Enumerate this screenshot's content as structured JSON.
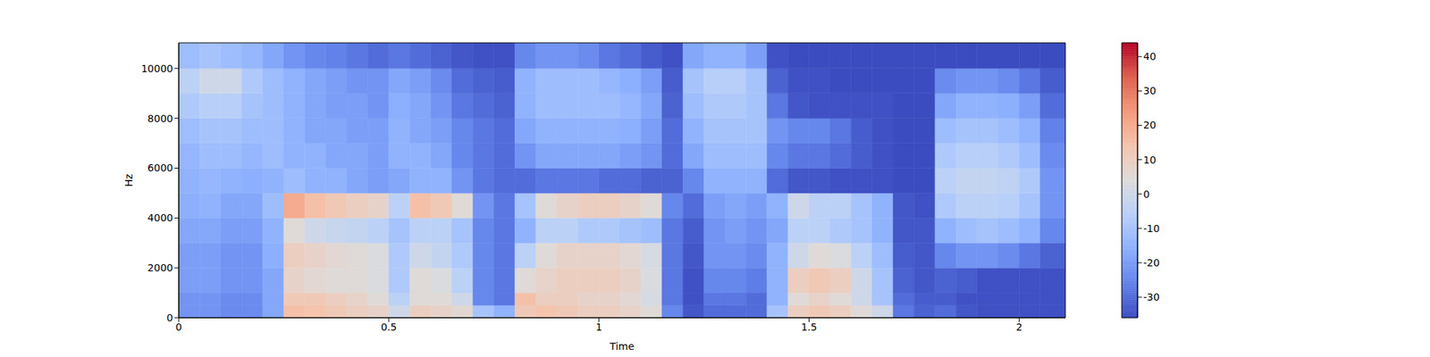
{
  "chart_data": {
    "type": "heatmap",
    "xlabel": "Time",
    "ylabel": "Hz",
    "xlim": [
      0,
      2.11
    ],
    "ylim": [
      0,
      11025
    ],
    "xticks": [
      0,
      0.5,
      1,
      1.5,
      2
    ],
    "yticks": [
      0,
      2000,
      4000,
      6000,
      8000,
      10000
    ],
    "x": [
      0,
      0.05,
      0.1,
      0.15,
      0.2,
      0.25,
      0.3,
      0.35,
      0.4,
      0.45,
      0.5,
      0.55,
      0.6,
      0.65,
      0.7,
      0.75,
      0.8,
      0.85,
      0.9,
      0.95,
      1,
      1.05,
      1.1,
      1.15,
      1.2,
      1.25,
      1.3,
      1.35,
      1.4,
      1.45,
      1.5,
      1.55,
      1.6,
      1.65,
      1.7,
      1.75,
      1.8,
      1.85,
      1.9,
      1.95,
      2,
      2.05
    ],
    "y": [
      0,
      500,
      1000,
      2000,
      3000,
      4000,
      5000,
      6000,
      7000,
      8000,
      9000,
      10000
    ],
    "z": [
      [
        -22,
        -22,
        -24,
        -24,
        -18,
        15,
        14,
        12,
        10,
        8,
        0,
        10,
        8,
        6,
        -10,
        -15,
        12,
        14,
        12,
        10,
        10,
        8,
        5,
        -25,
        -34,
        -30,
        -30,
        -30,
        -10,
        10,
        12,
        10,
        5,
        0,
        -28,
        -32,
        -30,
        -34,
        -35,
        -35,
        -35,
        -35
      ],
      [
        -22,
        -22,
        -24,
        -24,
        -18,
        12,
        12,
        10,
        8,
        5,
        -5,
        5,
        5,
        0,
        -25,
        -28,
        15,
        10,
        10,
        8,
        8,
        6,
        2,
        -28,
        -35,
        -28,
        -28,
        -30,
        -15,
        5,
        8,
        5,
        0,
        -10,
        -30,
        -33,
        -33,
        -35,
        -35,
        -35,
        -35,
        -35
      ],
      [
        -20,
        -20,
        -22,
        -22,
        -18,
        8,
        6,
        5,
        5,
        3,
        -8,
        5,
        3,
        -5,
        -25,
        -28,
        5,
        8,
        10,
        10,
        10,
        8,
        3,
        -28,
        -35,
        -25,
        -25,
        -27,
        -15,
        10,
        12,
        10,
        0,
        -10,
        -32,
        -34,
        -32,
        -33,
        -35,
        -35,
        -35,
        -35
      ],
      [
        -20,
        -20,
        -22,
        -22,
        -16,
        10,
        8,
        6,
        5,
        3,
        -8,
        0,
        -3,
        -8,
        -25,
        -28,
        -5,
        5,
        8,
        8,
        8,
        6,
        2,
        -28,
        -34,
        -22,
        -22,
        -24,
        -15,
        0,
        5,
        3,
        -5,
        -12,
        -33,
        -34,
        -25,
        -22,
        -22,
        -24,
        -28,
        -32
      ],
      [
        -18,
        -18,
        -20,
        -20,
        -15,
        5,
        0,
        -2,
        -3,
        -5,
        -10,
        -5,
        -5,
        -10,
        -25,
        -28,
        -15,
        -5,
        -5,
        -8,
        -8,
        -10,
        -12,
        -28,
        -33,
        -22,
        -20,
        -22,
        -18,
        -5,
        -5,
        -8,
        -10,
        -15,
        -34,
        -34,
        -15,
        -12,
        -10,
        -12,
        -15,
        -25
      ],
      [
        -16,
        -15,
        -18,
        -18,
        -12,
        20,
        15,
        12,
        10,
        8,
        -5,
        15,
        12,
        5,
        -22,
        -28,
        -10,
        5,
        8,
        10,
        10,
        8,
        5,
        -25,
        -30,
        -20,
        -18,
        -20,
        -15,
        0,
        -5,
        -5,
        -10,
        -15,
        -34,
        -35,
        -8,
        -5,
        -5,
        -6,
        -10,
        -22
      ],
      [
        -15,
        -14,
        -15,
        -16,
        -15,
        -12,
        -15,
        -15,
        -18,
        -20,
        -18,
        -15,
        -15,
        -22,
        -28,
        -30,
        -30,
        -28,
        -28,
        -28,
        -30,
        -30,
        -32,
        -32,
        -25,
        -15,
        -15,
        -15,
        -30,
        -34,
        -34,
        -35,
        -35,
        -35,
        -36,
        -36,
        -5,
        -3,
        -3,
        -4,
        -8,
        -22
      ],
      [
        -14,
        -12,
        -12,
        -14,
        -12,
        -15,
        -15,
        -18,
        -18,
        -20,
        -15,
        -15,
        -18,
        -25,
        -28,
        -30,
        -22,
        -18,
        -18,
        -18,
        -18,
        -20,
        -22,
        -30,
        -18,
        -12,
        -12,
        -12,
        -25,
        -28,
        -28,
        -30,
        -33,
        -35,
        -36,
        -36,
        -8,
        -6,
        -6,
        -8,
        -12,
        -24
      ],
      [
        -12,
        -10,
        -10,
        -12,
        -12,
        -15,
        -18,
        -18,
        -20,
        -20,
        -15,
        -18,
        -20,
        -25,
        -28,
        -30,
        -18,
        -15,
        -15,
        -15,
        -15,
        -16,
        -20,
        -30,
        -15,
        -10,
        -10,
        -10,
        -22,
        -25,
        -25,
        -28,
        -33,
        -35,
        -36,
        -36,
        -12,
        -10,
        -10,
        -12,
        -15,
        -26
      ],
      [
        -8,
        -6,
        -6,
        -10,
        -12,
        -15,
        -18,
        -20,
        -20,
        -22,
        -16,
        -18,
        -22,
        -28,
        -30,
        -32,
        -15,
        -12,
        -12,
        -12,
        -12,
        -14,
        -18,
        -32,
        -12,
        -8,
        -8,
        -10,
        -28,
        -34,
        -35,
        -35,
        -35,
        -35,
        -36,
        -36,
        -18,
        -15,
        -15,
        -16,
        -20,
        -30
      ],
      [
        -5,
        0,
        0,
        -8,
        -12,
        -15,
        -18,
        -20,
        -22,
        -22,
        -18,
        -20,
        -24,
        -30,
        -32,
        -33,
        -15,
        -12,
        -12,
        -12,
        -14,
        -16,
        -20,
        -33,
        -10,
        -6,
        -6,
        -10,
        -32,
        -35,
        -35,
        -36,
        -36,
        -36,
        -36,
        -36,
        -24,
        -22,
        -22,
        -24,
        -28,
        -33
      ],
      [
        -12,
        -10,
        -12,
        -14,
        -18,
        -22,
        -25,
        -26,
        -28,
        -30,
        -28,
        -30,
        -32,
        -34,
        -35,
        -35,
        -25,
        -22,
        -22,
        -24,
        -28,
        -30,
        -33,
        -35,
        -18,
        -15,
        -15,
        -20,
        -35,
        -36,
        -36,
        -36,
        -36,
        -36,
        -36,
        -36,
        -36,
        -36,
        -36,
        -36,
        -36,
        -36
      ]
    ],
    "colorbar": {
      "range": [
        -36,
        44
      ],
      "ticks": [
        -30,
        -20,
        -10,
        0,
        10,
        20,
        30,
        40
      ]
    }
  }
}
